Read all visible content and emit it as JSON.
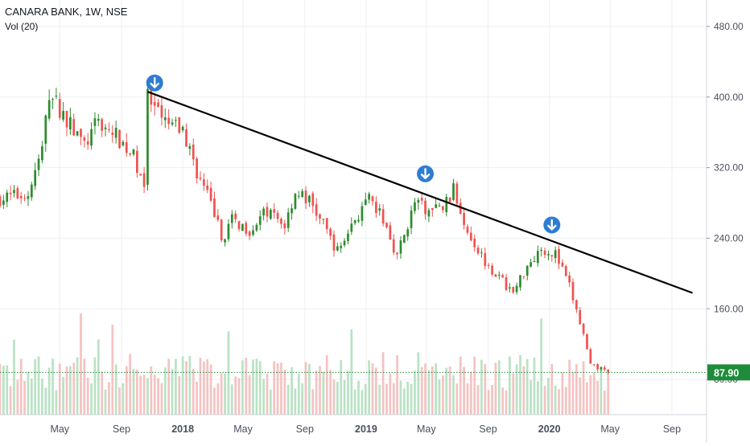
{
  "legend": {
    "title": "CANARA BANK, 1W, NSE",
    "volume_label": "Vol (20)"
  },
  "colors": {
    "up": "#26a69a",
    "up_body": "#2e8b2e",
    "down": "#ef5350",
    "up_volume": "#b9e2c4",
    "down_volume": "#f5c2c2",
    "trendline": "#000000",
    "marker": "#2e7dd1",
    "price_line": "#1e8c3a",
    "grid": "#eceff2"
  },
  "chart_data": {
    "type": "candlestick",
    "title": "CANARA BANK, 1W, NSE",
    "xlabel": "",
    "ylabel": "",
    "ylim": [
      40,
      510
    ],
    "y_ticks": [
      "480.00",
      "400.00",
      "320.00",
      "240.00",
      "160.00",
      "80.00"
    ],
    "y_tick_values": [
      480,
      400,
      320,
      240,
      160,
      80
    ],
    "x_ticks": [
      "May",
      "Sep",
      "2018",
      "May",
      "Sep",
      "2019",
      "May",
      "Sep",
      "2020",
      "May",
      "Sep"
    ],
    "x_tick_dates": [
      "2017-05-01",
      "2017-09-01",
      "2018-01-01",
      "2018-05-01",
      "2018-09-01",
      "2019-01-01",
      "2019-05-01",
      "2019-09-01",
      "2020-01-01",
      "2020-05-01",
      "2020-09-01"
    ],
    "x_range": [
      "2017-01-02",
      "2020-11-09"
    ],
    "last_price": "87.90",
    "path_points": [
      [
        "2017-01-02",
        285
      ],
      [
        "2017-02-27",
        290
      ],
      [
        "2017-03-27",
        340
      ],
      [
        "2017-04-10",
        405
      ],
      [
        "2017-05-08",
        380
      ],
      [
        "2017-06-19",
        345
      ],
      [
        "2017-07-17",
        372
      ],
      [
        "2017-08-28",
        352
      ],
      [
        "2017-09-25",
        332
      ],
      [
        "2017-10-16",
        303
      ],
      [
        "2017-10-23",
        398
      ],
      [
        "2017-11-20",
        372
      ],
      [
        "2018-01-01",
        362
      ],
      [
        "2018-02-05",
        305
      ],
      [
        "2018-03-05",
        270
      ],
      [
        "2018-03-19",
        238
      ],
      [
        "2018-04-09",
        260
      ],
      [
        "2018-05-14",
        250
      ],
      [
        "2018-06-18",
        270
      ],
      [
        "2018-07-23",
        255
      ],
      [
        "2018-08-13",
        293
      ],
      [
        "2018-09-10",
        282
      ],
      [
        "2018-10-08",
        255
      ],
      [
        "2018-11-05",
        225
      ],
      [
        "2018-12-10",
        262
      ],
      [
        "2019-01-07",
        282
      ],
      [
        "2019-02-04",
        262
      ],
      [
        "2019-03-04",
        220
      ],
      [
        "2019-04-08",
        280
      ],
      [
        "2019-05-06",
        270
      ],
      [
        "2019-06-03",
        275
      ],
      [
        "2019-06-24",
        294
      ],
      [
        "2019-07-22",
        250
      ],
      [
        "2019-08-19",
        220
      ],
      [
        "2019-09-23",
        195
      ],
      [
        "2019-10-21",
        178
      ],
      [
        "2019-11-18",
        210
      ],
      [
        "2019-12-16",
        229
      ],
      [
        "2020-01-13",
        222
      ],
      [
        "2020-02-10",
        185
      ],
      [
        "2020-03-09",
        130
      ],
      [
        "2020-03-23",
        95
      ],
      [
        "2020-04-13",
        92
      ],
      [
        "2020-04-27",
        87.9
      ]
    ],
    "trendline": {
      "start": {
        "date": "2017-10-23",
        "value": 406
      },
      "end": {
        "date": "2020-10-12",
        "value": 178
      }
    },
    "markers": [
      {
        "date": "2017-11-06",
        "value": 416,
        "icon": "arrow-down-icon"
      },
      {
        "date": "2019-04-29",
        "value": 313,
        "icon": "arrow-down-icon"
      },
      {
        "date": "2020-01-06",
        "value": 255,
        "icon": "arrow-down-icon"
      }
    ]
  }
}
